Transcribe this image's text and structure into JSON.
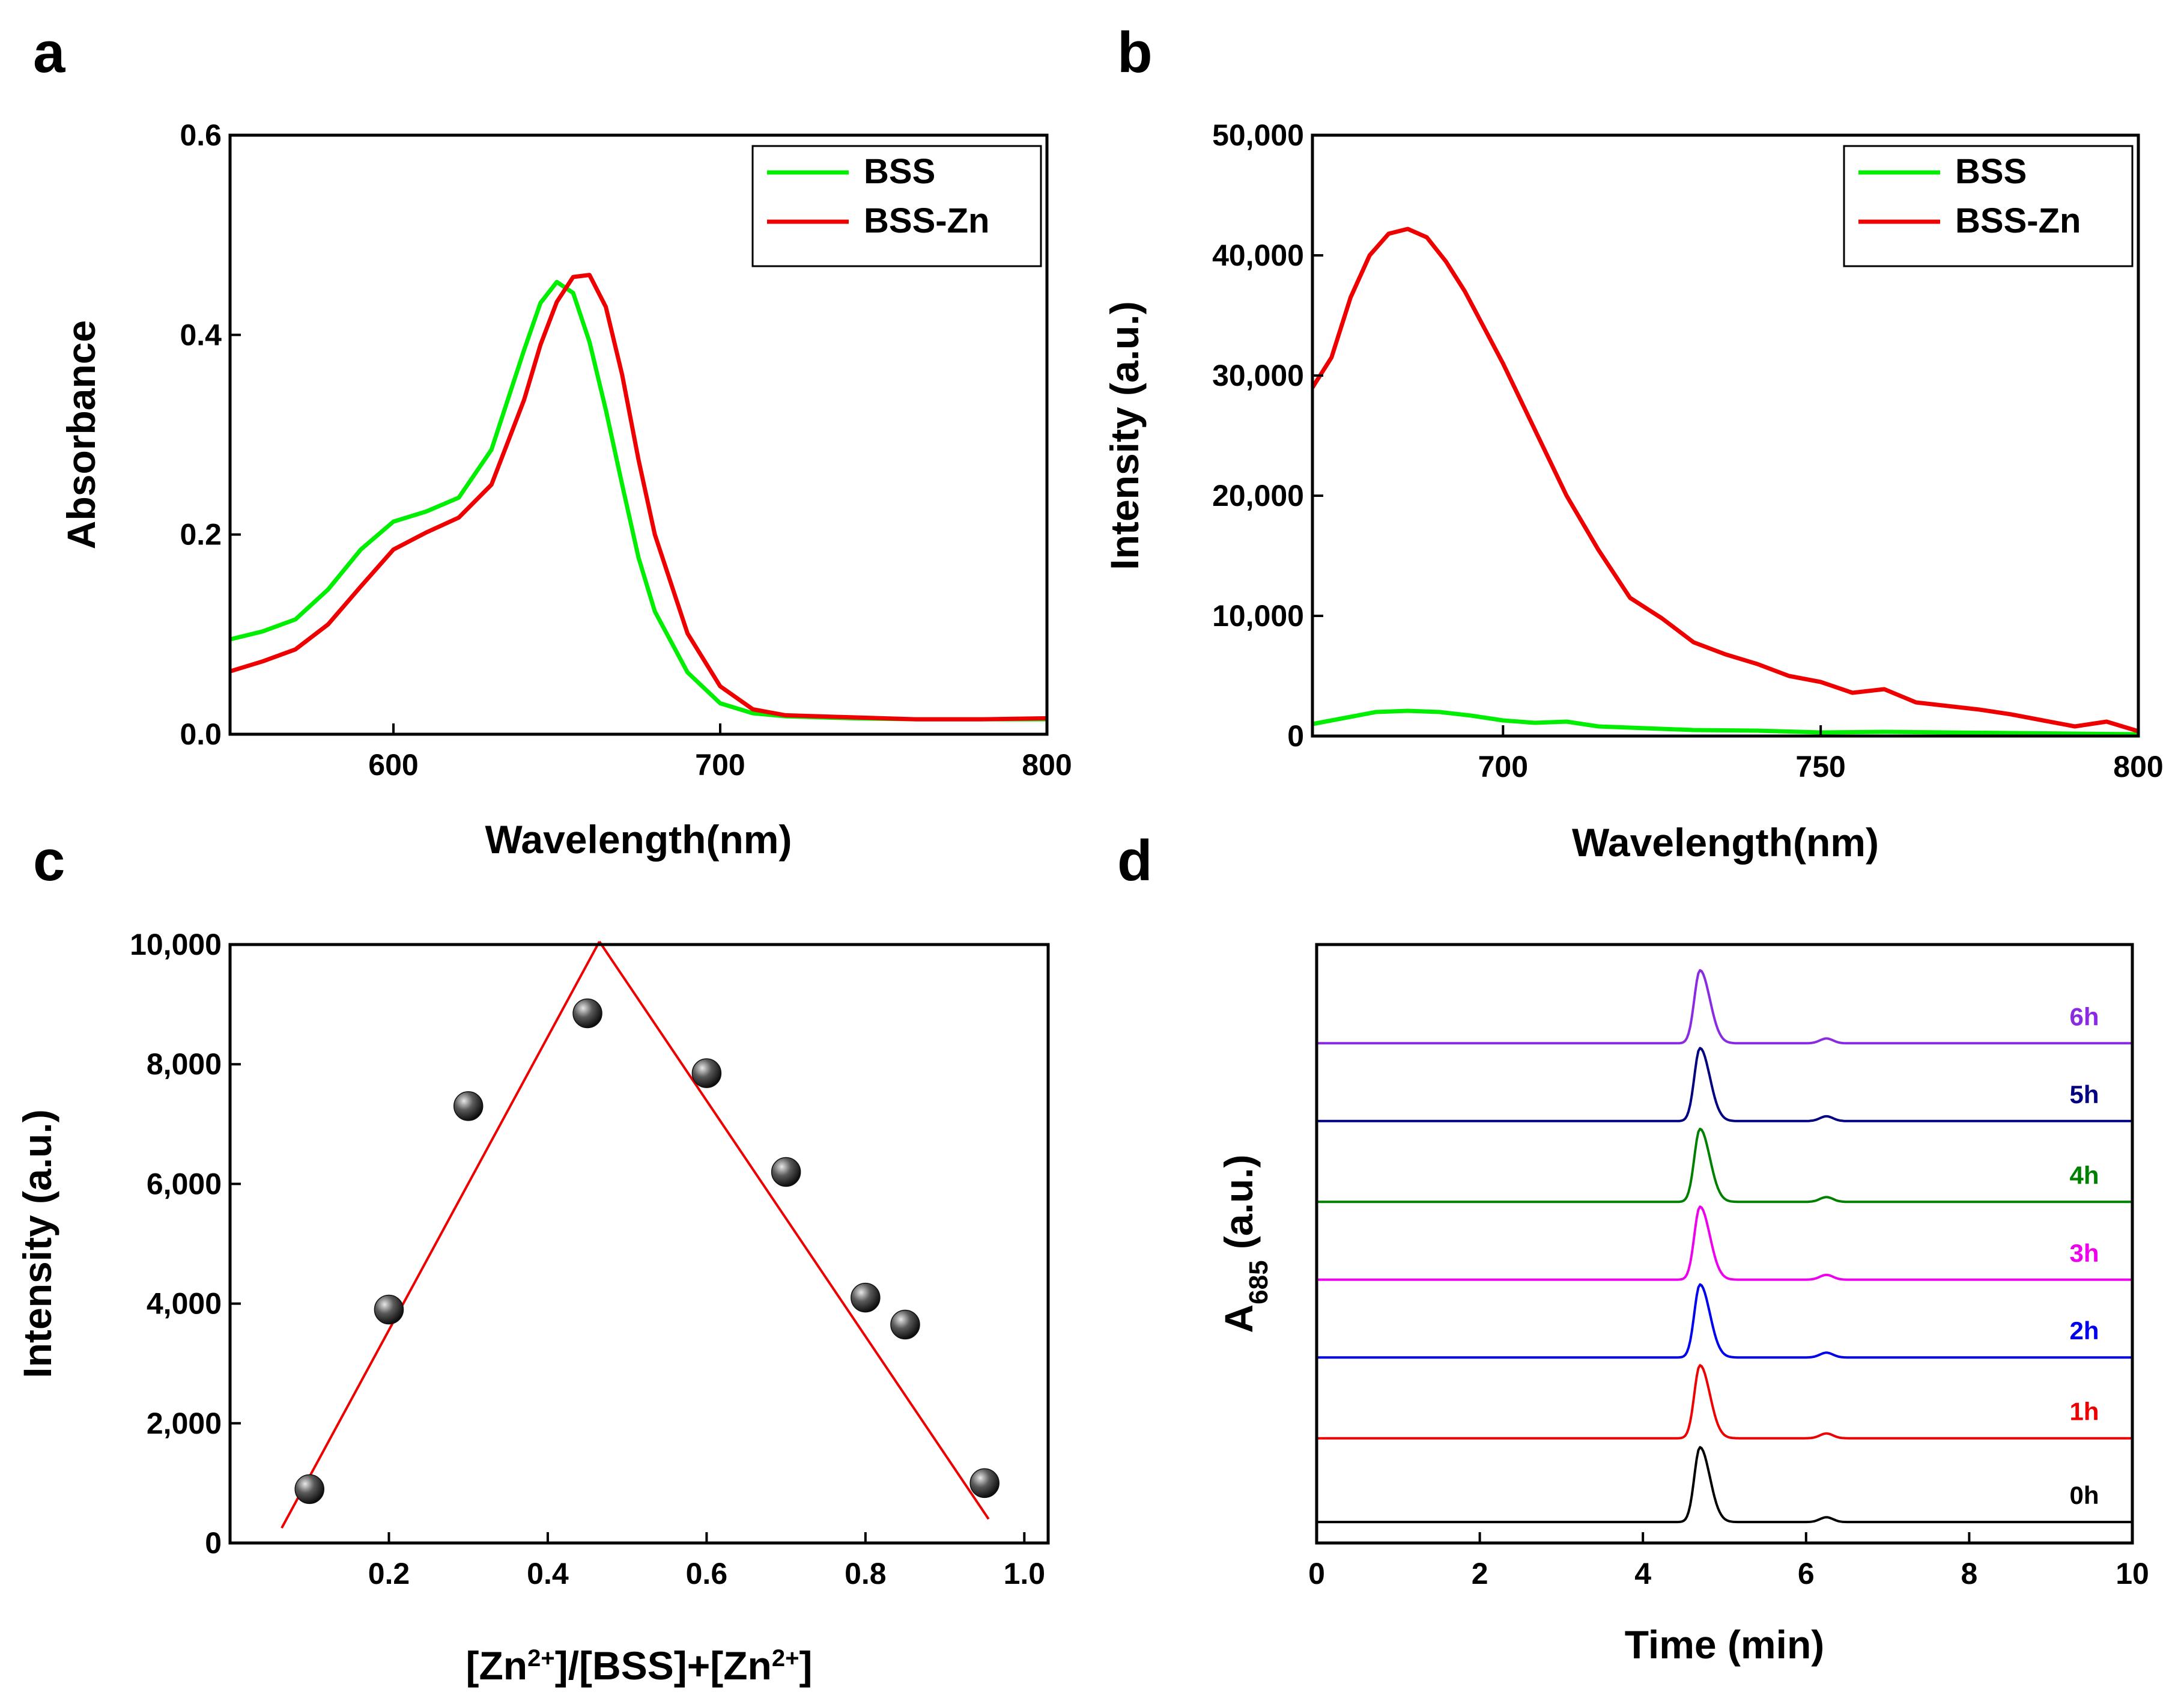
{
  "chart_data": [
    {
      "panel": "a",
      "type": "line",
      "xlabel": "Wavelength(nm)",
      "ylabel": "Absorbance",
      "xlim": [
        550,
        800
      ],
      "ylim": [
        0,
        0.6
      ],
      "xticks": [
        600,
        700,
        800
      ],
      "yticks": [
        0.0,
        0.2,
        0.4,
        0.6
      ],
      "xtick_labels": [
        "600",
        "700",
        "800"
      ],
      "ytick_labels": [
        "0.0",
        "0.2",
        "0.4",
        "0.6"
      ],
      "legend": "top-right",
      "series": [
        {
          "name": "BSS",
          "color": "#00ee00",
          "x": [
            550,
            560,
            570,
            580,
            590,
            600,
            610,
            620,
            630,
            640,
            645,
            650,
            655,
            660,
            665,
            670,
            675,
            680,
            690,
            700,
            710,
            720,
            740,
            760,
            780,
            800
          ],
          "y": [
            0.095,
            0.103,
            0.115,
            0.145,
            0.185,
            0.213,
            0.223,
            0.237,
            0.285,
            0.385,
            0.432,
            0.453,
            0.442,
            0.393,
            0.325,
            0.25,
            0.177,
            0.123,
            0.062,
            0.031,
            0.021,
            0.018,
            0.016,
            0.015,
            0.015,
            0.015
          ]
        },
        {
          "name": "BSS-Zn",
          "color": "#ee0000",
          "x": [
            550,
            560,
            570,
            580,
            590,
            600,
            610,
            620,
            630,
            640,
            645,
            650,
            655,
            660,
            665,
            670,
            675,
            680,
            690,
            700,
            710,
            720,
            740,
            760,
            780,
            800
          ],
          "y": [
            0.063,
            0.073,
            0.085,
            0.11,
            0.148,
            0.185,
            0.202,
            0.217,
            0.25,
            0.335,
            0.39,
            0.433,
            0.458,
            0.46,
            0.428,
            0.36,
            0.275,
            0.2,
            0.101,
            0.048,
            0.025,
            0.019,
            0.017,
            0.015,
            0.015,
            0.016
          ]
        }
      ]
    },
    {
      "panel": "b",
      "type": "line",
      "xlabel": "Wavelength(nm)",
      "ylabel": "Intensity (a.u.)",
      "xlim": [
        670,
        800
      ],
      "ylim": [
        0,
        50000
      ],
      "xticks": [
        700,
        750,
        800
      ],
      "yticks": [
        0,
        10000,
        20000,
        30000,
        40000,
        50000
      ],
      "xtick_labels": [
        "700",
        "750",
        "800"
      ],
      "ytick_labels": [
        "0",
        "10,000",
        "20,000",
        "30,000",
        "40,000",
        "50,000"
      ],
      "legend": "top-right",
      "series": [
        {
          "name": "BSS",
          "color": "#00ee00",
          "x": [
            670,
            675,
            680,
            685,
            690,
            695,
            700,
            705,
            710,
            715,
            720,
            730,
            740,
            750,
            760,
            770,
            780,
            790,
            800
          ],
          "y": [
            1000,
            1500,
            2000,
            2100,
            2000,
            1700,
            1300,
            1100,
            1200,
            800,
            700,
            500,
            450,
            300,
            350,
            300,
            250,
            200,
            150
          ]
        },
        {
          "name": "BSS-Zn",
          "color": "#ee0000",
          "x": [
            670,
            673,
            676,
            679,
            682,
            685,
            688,
            691,
            694,
            697,
            700,
            705,
            710,
            715,
            720,
            725,
            730,
            735,
            740,
            745,
            750,
            755,
            760,
            765,
            770,
            775,
            780,
            785,
            790,
            795,
            800
          ],
          "y": [
            29000,
            31500,
            36500,
            40000,
            41800,
            42200,
            41500,
            39500,
            37000,
            34000,
            31000,
            25500,
            20000,
            15500,
            11500,
            9800,
            7800,
            6800,
            6000,
            5000,
            4500,
            3600,
            3900,
            2800,
            2500,
            2200,
            1800,
            1300,
            800,
            1200,
            400
          ]
        }
      ]
    },
    {
      "panel": "c",
      "type": "scatter",
      "xlabel_parts": [
        "[Zn",
        "2+",
        "]/[BSS]+[Zn",
        "2+",
        "]"
      ],
      "ylabel": "Intensity (a.u.)",
      "xlim": [
        0,
        1.03
      ],
      "ylim": [
        0,
        10000
      ],
      "xticks": [
        0.2,
        0.4,
        0.6,
        0.8,
        1.0
      ],
      "yticks": [
        0,
        2000,
        4000,
        6000,
        8000,
        10000
      ],
      "xtick_labels": [
        "0.2",
        "0.4",
        "0.6",
        "0.8",
        "1.0"
      ],
      "ytick_labels": [
        "0",
        "2,000",
        "4,000",
        "6,000",
        "8,000",
        "10,000"
      ],
      "points": {
        "x": [
          0.1,
          0.2,
          0.3,
          0.45,
          0.6,
          0.7,
          0.8,
          0.85,
          0.95
        ],
        "y": [
          900,
          3900,
          7300,
          8850,
          7850,
          6200,
          4100,
          3650,
          1000
        ]
      },
      "fit_lines": [
        {
          "color": "#ee0000",
          "x": [
            0.065,
            0.465
          ],
          "y": [
            250,
            10050
          ]
        },
        {
          "color": "#ee0000",
          "x": [
            0.465,
            0.955
          ],
          "y": [
            10050,
            400
          ]
        }
      ]
    },
    {
      "panel": "d",
      "type": "line",
      "xlabel": "Time (min)",
      "ylabel_main": "A",
      "ylabel_sub": "685",
      "ylabel_tail": " (a.u.)",
      "xlim": [
        0,
        10
      ],
      "ylim": [
        0,
        1
      ],
      "xticks": [
        0,
        2,
        4,
        6,
        8,
        10
      ],
      "xtick_labels": [
        "0",
        "2",
        "4",
        "6",
        "8",
        "10"
      ],
      "peak_time": 4.7,
      "minor_peak_time": 6.25,
      "series": [
        {
          "name": "0h",
          "color": "#000000",
          "baseline": 0.035,
          "peak_height": 0.125
        },
        {
          "name": "1h",
          "color": "#ee0000",
          "baseline": 0.175,
          "peak_height": 0.122
        },
        {
          "name": "2h",
          "color": "#0000ee",
          "baseline": 0.31,
          "peak_height": 0.122
        },
        {
          "name": "3h",
          "color": "#ee00ee",
          "baseline": 0.44,
          "peak_height": 0.122
        },
        {
          "name": "4h",
          "color": "#008000",
          "baseline": 0.57,
          "peak_height": 0.122
        },
        {
          "name": "5h",
          "color": "#000080",
          "baseline": 0.705,
          "peak_height": 0.122
        },
        {
          "name": "6h",
          "color": "#8a2be2",
          "baseline": 0.835,
          "peak_height": 0.122
        }
      ]
    }
  ],
  "panel_labels": [
    "a",
    "b",
    "c",
    "d"
  ]
}
